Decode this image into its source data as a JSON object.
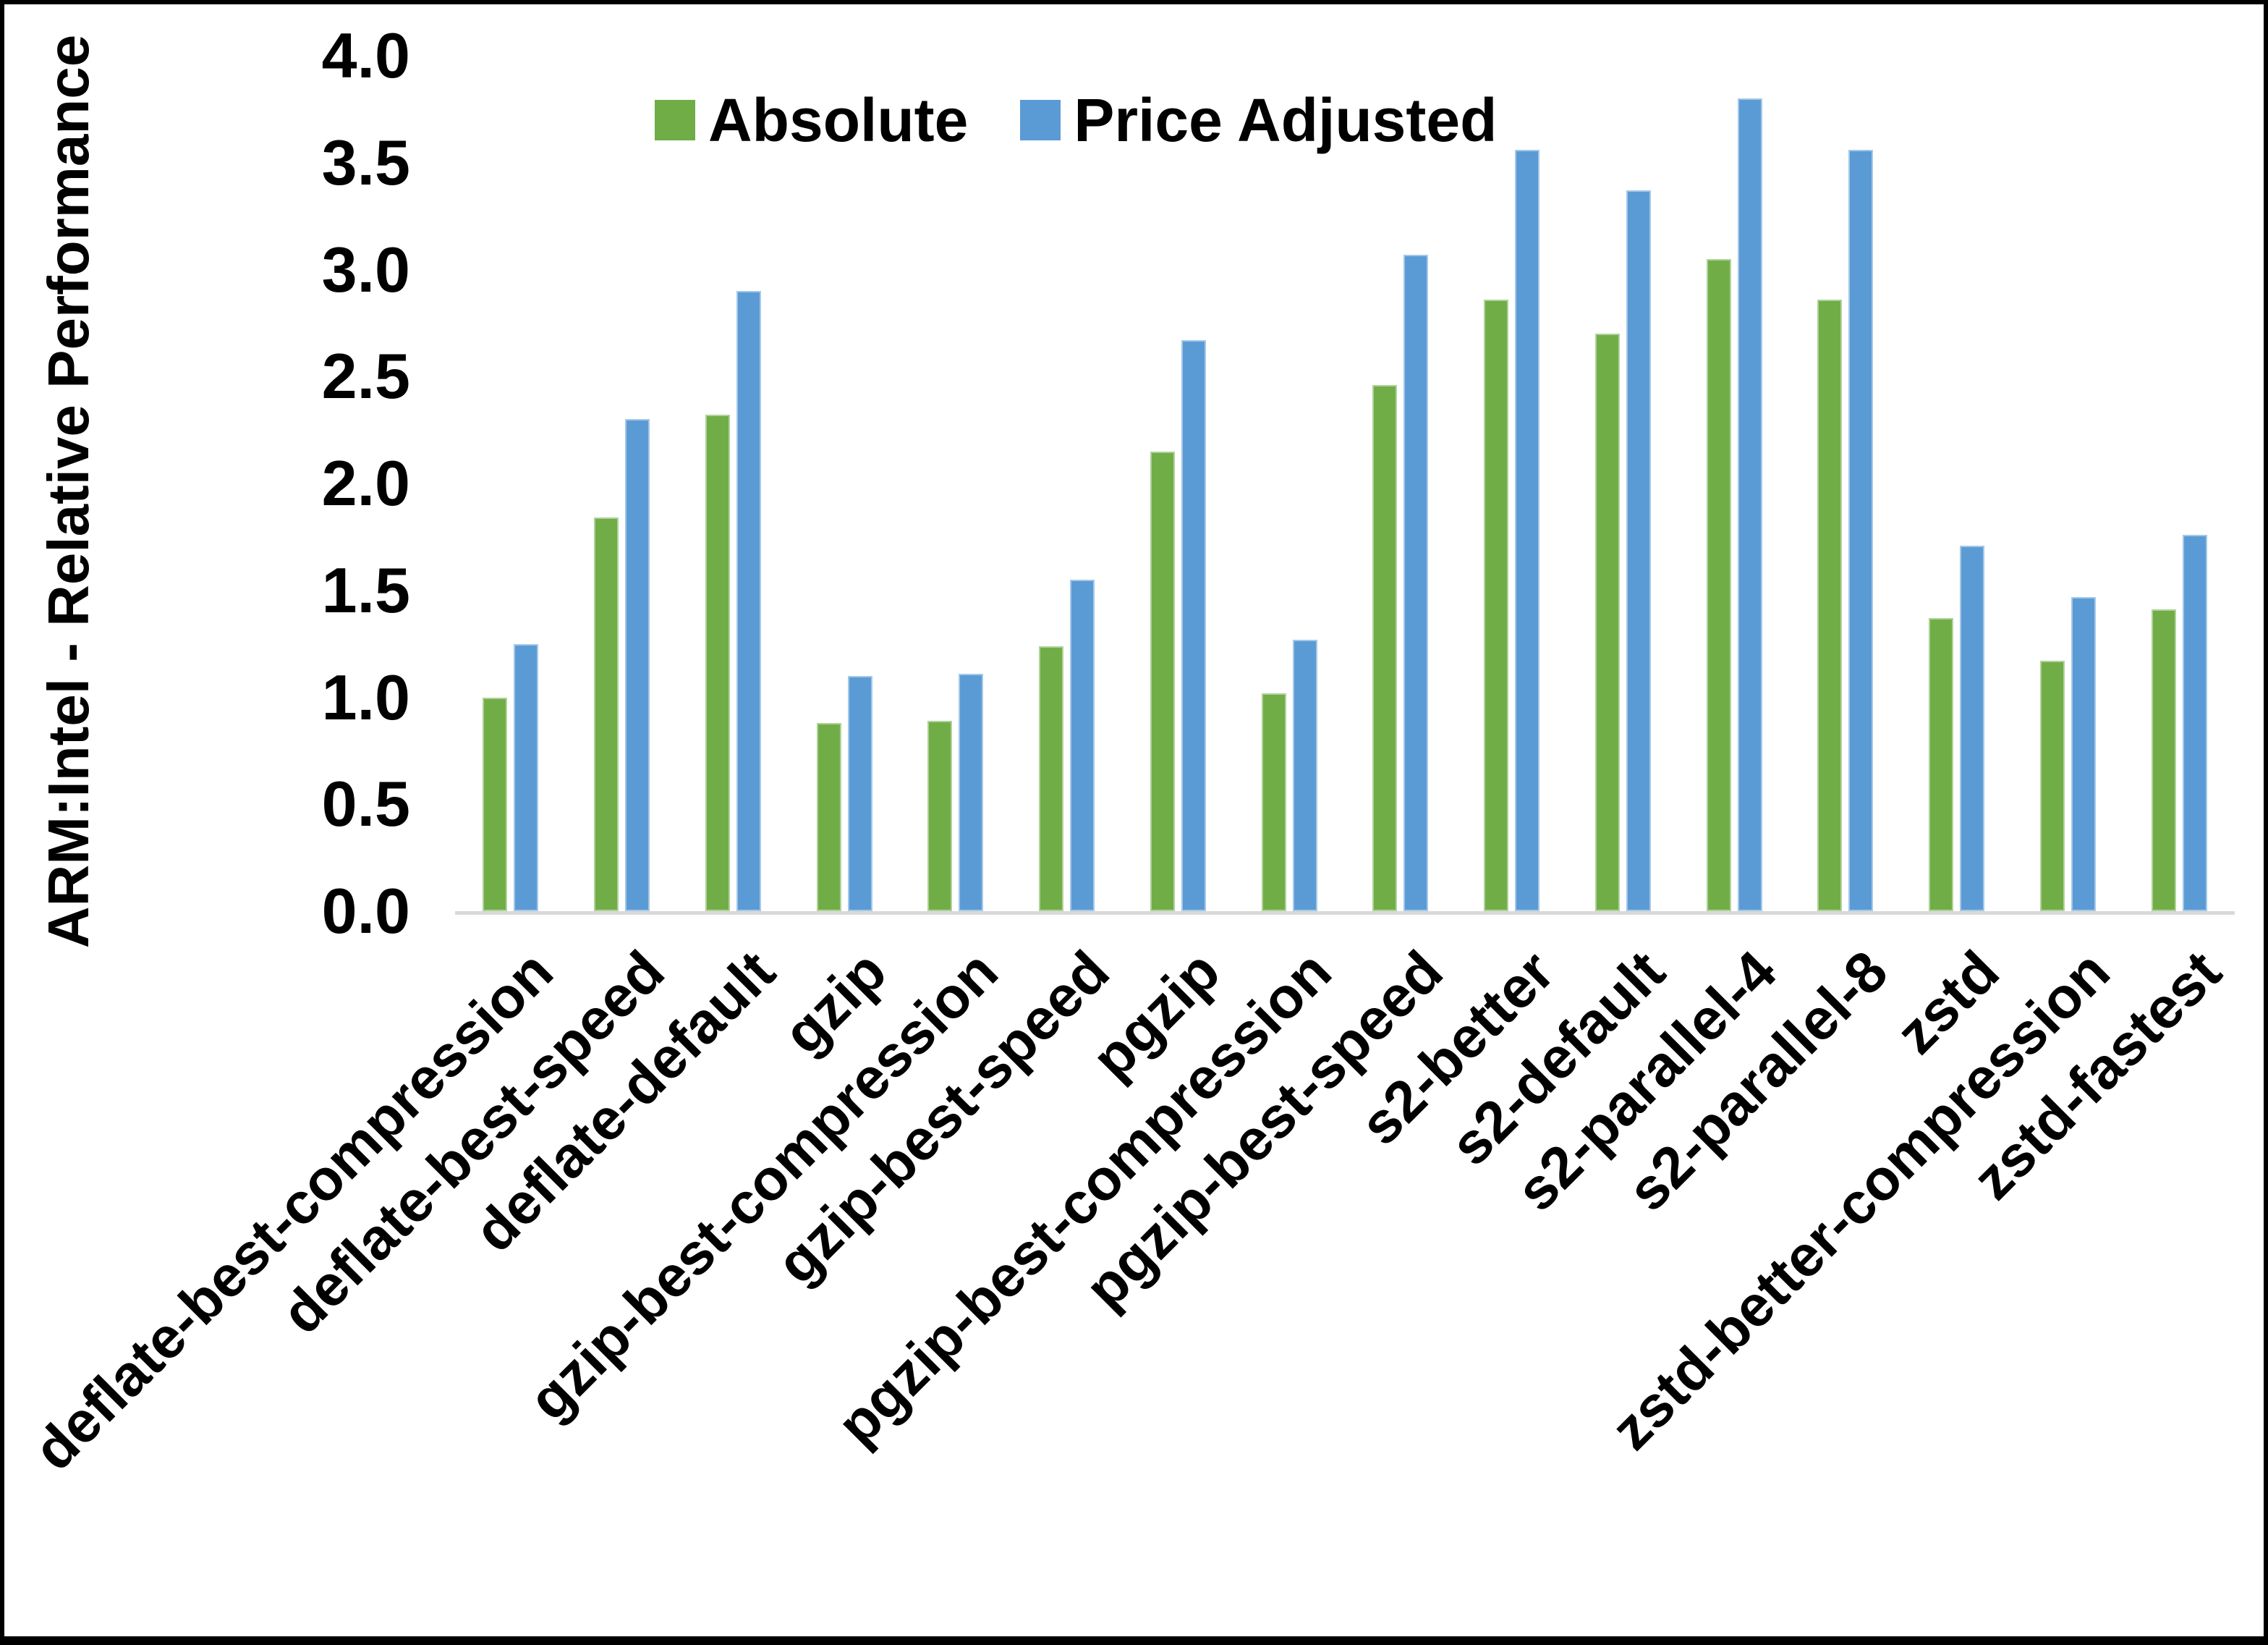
{
  "chart_data": {
    "type": "bar",
    "title": "",
    "xlabel": "",
    "ylabel": "ARM:Intel - Relative Performance",
    "ylim": [
      0.0,
      4.0
    ],
    "ytick_step": 0.5,
    "ytick_labels": [
      "0.0",
      "0.5",
      "1.0",
      "1.5",
      "2.0",
      "2.5",
      "3.0",
      "3.5",
      "4.0"
    ],
    "grid": false,
    "legend_position": "top-center",
    "background_color": "#ffffff",
    "axis_line_color": "#D9D9D9",
    "text_color": "#000000",
    "categories": [
      "deflate-best-compression",
      "deflate-best-speed",
      "deflate-default",
      "gzip",
      "gzip-best-compression",
      "gzip-best-speed",
      "pgzip",
      "pgzip-best-compression",
      "pgzip-best-speed",
      "s2-better",
      "s2-default",
      "s2-parallel-4",
      "s2-parallel-8",
      "zstd",
      "zstd-better-compression",
      "zstd-fastest"
    ],
    "series": [
      {
        "name": "Absolute",
        "color": "#70AD47",
        "values": [
          1.0,
          1.84,
          2.32,
          0.88,
          0.89,
          1.24,
          2.15,
          1.02,
          2.46,
          2.86,
          2.7,
          3.05,
          2.86,
          1.37,
          1.17,
          1.41
        ]
      },
      {
        "name": "Price Adjusted",
        "color": "#5B9BD5",
        "values": [
          1.25,
          2.3,
          2.9,
          1.1,
          1.11,
          1.55,
          2.67,
          1.27,
          3.07,
          3.56,
          3.37,
          3.8,
          3.56,
          1.71,
          1.47,
          1.76
        ]
      }
    ]
  }
}
